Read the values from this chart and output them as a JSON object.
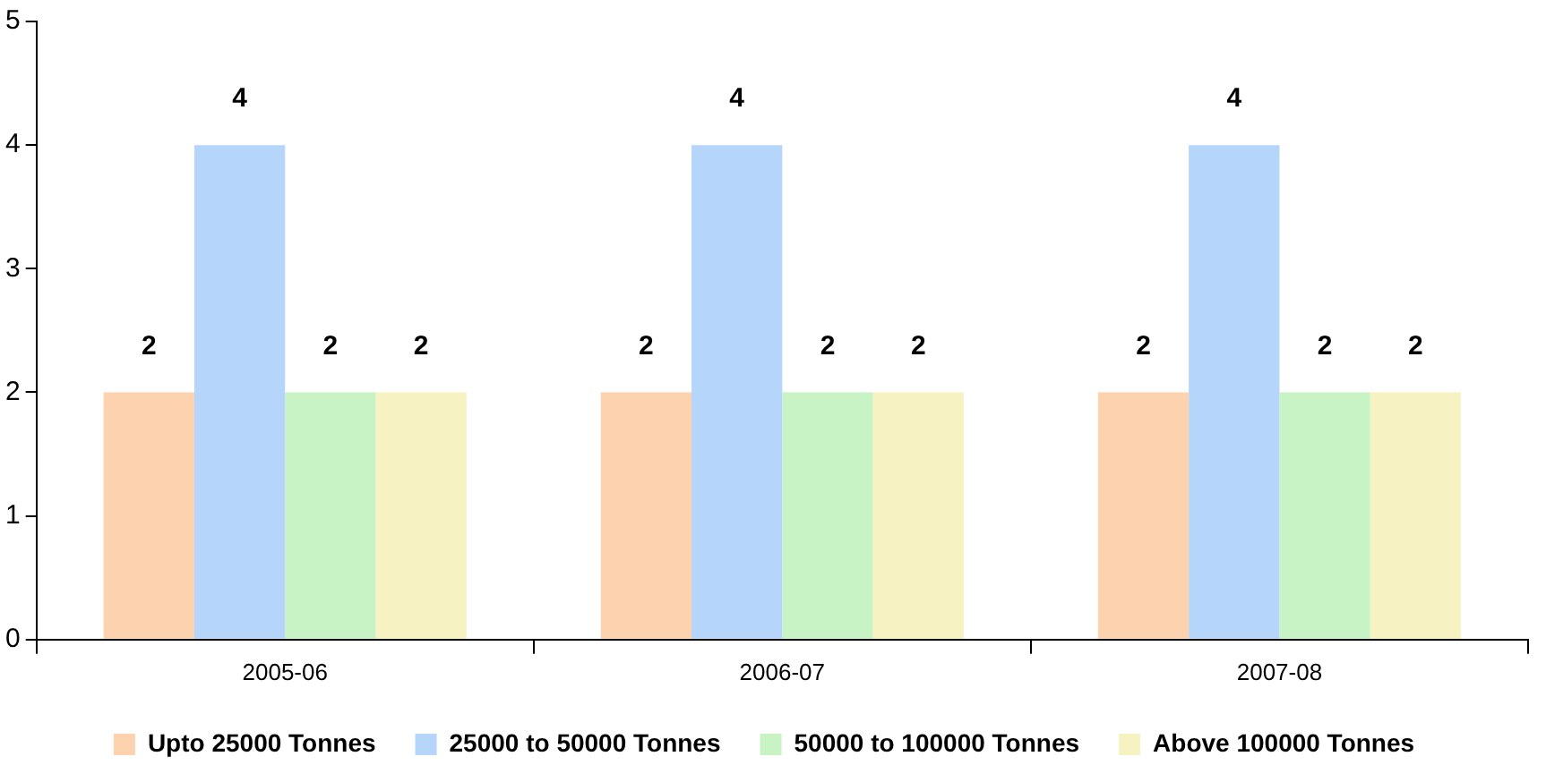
{
  "chart_data": {
    "type": "bar",
    "categories": [
      "2005-06",
      "2006-07",
      "2007-08"
    ],
    "series": [
      {
        "name": "Upto 25000 Tonnes",
        "color": "#fcd3ae",
        "values": [
          2,
          2,
          2
        ]
      },
      {
        "name": "25000 to 50000 Tonnes",
        "color": "#b5d5fb",
        "values": [
          4,
          4,
          4
        ]
      },
      {
        "name": "50000 to 100000 Tonnes",
        "color": "#c8f3c4",
        "values": [
          2,
          2,
          2
        ]
      },
      {
        "name": "Above 100000 Tonnes",
        "color": "#f7f2c2",
        "values": [
          2,
          2,
          2
        ]
      }
    ],
    "ylim": [
      0,
      5
    ],
    "yticks": [
      0,
      1,
      2,
      3,
      4,
      5
    ],
    "data_labels": true,
    "legend": "bottom",
    "grid": false
  }
}
